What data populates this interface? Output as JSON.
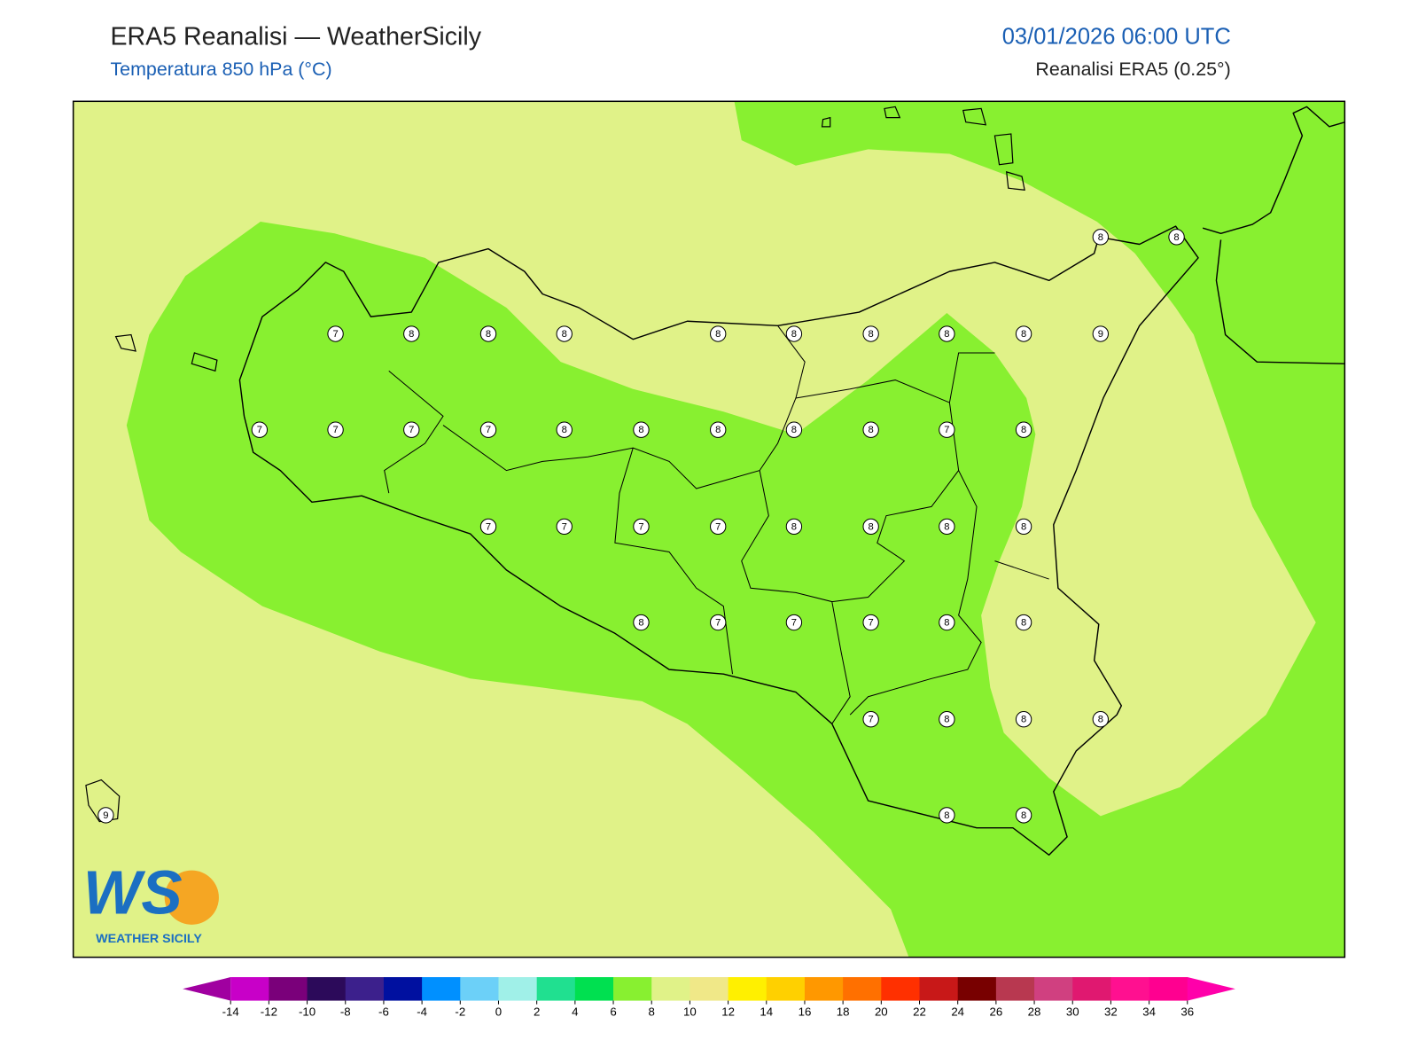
{
  "header": {
    "title": "ERA5 Reanalisi — WeatherSicily",
    "subtitle": "Temperatura 850 hPa (°C)",
    "datetime": "03/01/2026 06:00 UTC",
    "source": "Reanalisi ERA5 (0.25°)"
  },
  "map": {
    "stations": [
      8,
      8,
      7,
      8,
      8,
      8,
      8,
      8,
      8,
      8,
      8,
      9,
      7,
      7,
      7,
      7,
      8,
      8,
      8,
      8,
      8,
      7,
      8,
      7,
      7,
      7,
      7,
      8,
      8,
      8,
      8,
      8,
      7,
      7,
      7,
      8,
      8,
      7,
      8,
      8,
      8,
      8,
      8,
      9
    ],
    "colors": {
      "low": "#e0f288",
      "high": "#88f030"
    }
  },
  "colorbar": {
    "ticks": [
      -14,
      -12,
      -10,
      -8,
      -6,
      -4,
      -2,
      0,
      2,
      4,
      6,
      8,
      10,
      12,
      14,
      16,
      18,
      20,
      22,
      24,
      26,
      28,
      30,
      32,
      34,
      36
    ],
    "colors": [
      "#c800c8",
      "#7a007a",
      "#2c0a5a",
      "#3c208c",
      "#0010a0",
      "#0090ff",
      "#6cd0f8",
      "#a0f0e8",
      "#20e090",
      "#00e050",
      "#88f030",
      "#e0f288",
      "#f0e888",
      "#fff000",
      "#ffd000",
      "#ff9800",
      "#ff7000",
      "#ff3000",
      "#c81818",
      "#780000",
      "#b83850",
      "#d04080",
      "#e01870",
      "#ff1090",
      "#ff0090"
    ],
    "extend_colors": [
      "#a000a0",
      "#ff00aa"
    ]
  },
  "logo": {
    "mark": "WS",
    "text": "WEATHER SICILY"
  }
}
